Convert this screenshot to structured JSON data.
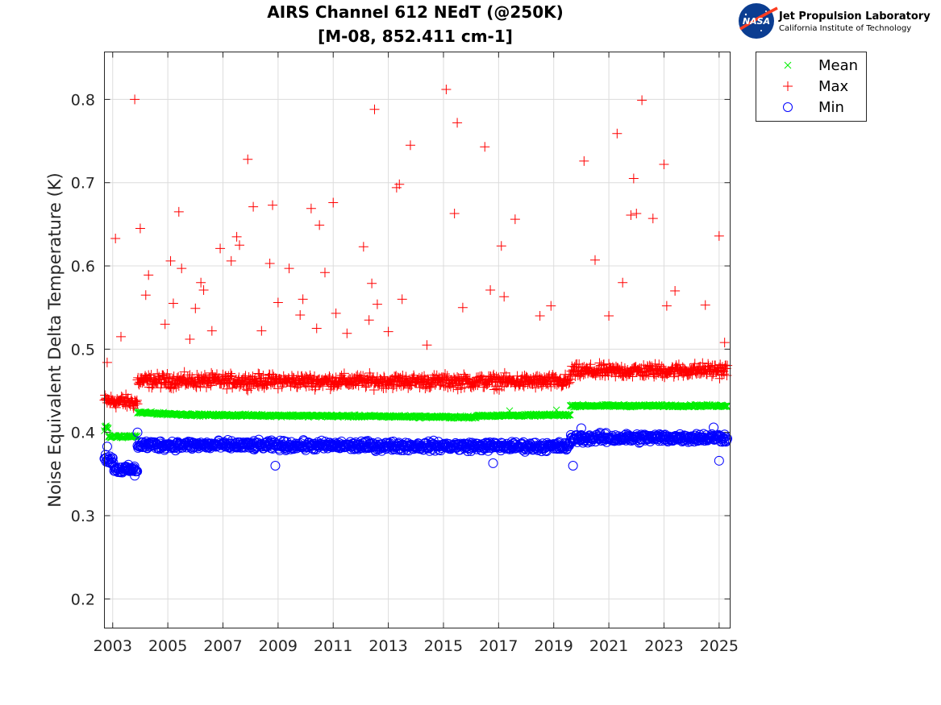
{
  "logo": {
    "org": "Jet Propulsion Laboratory",
    "sub": "California Institute of Technology",
    "badge": "NASA"
  },
  "chart_data": {
    "type": "scatter",
    "title": [
      "AIRS Channel 612 NEdT (@250K)",
      "[M-08, 852.411 cm-1]"
    ],
    "xlabel": "",
    "ylabel": "Noise Equivalent Delta Temperature (K)",
    "xlim": [
      2002.7,
      2025.4
    ],
    "ylim": [
      0.165,
      0.857
    ],
    "xticks": [
      2003,
      2005,
      2007,
      2009,
      2011,
      2013,
      2015,
      2017,
      2019,
      2021,
      2023,
      2025
    ],
    "yticks": [
      0.2,
      0.3,
      0.4,
      0.5,
      0.6,
      0.7,
      0.8
    ],
    "grid": true,
    "legend_position": "outside-top-right",
    "series": [
      {
        "name": "Mean",
        "marker": "x",
        "color": "#00ee00",
        "segments": [
          {
            "x": [
              2002.7,
              2002.85
            ],
            "y": [
              0.405,
              0.405
            ],
            "spread": 0.006
          },
          {
            "x": [
              2002.85,
              2003.9
            ],
            "y": [
              0.395,
              0.395
            ],
            "spread": 0.002
          },
          {
            "x": [
              2003.9,
              2004.5
            ],
            "y": [
              0.424,
              0.423
            ],
            "spread": 0.002
          },
          {
            "x": [
              2004.5,
              2006.0
            ],
            "y": [
              0.423,
              0.421
            ],
            "spread": 0.002
          },
          {
            "x": [
              2006.0,
              2014.0
            ],
            "y": [
              0.421,
              0.419
            ],
            "spread": 0.002
          },
          {
            "x": [
              2014.0,
              2016.2
            ],
            "y": [
              0.419,
              0.418
            ],
            "spread": 0.002
          },
          {
            "x": [
              2016.2,
              2019.6
            ],
            "y": [
              0.42,
              0.421
            ],
            "spread": 0.002
          },
          {
            "x": [
              2019.6,
              2025.3
            ],
            "y": [
              0.432,
              0.432
            ],
            "spread": 0.002
          }
        ],
        "outliers": [
          [
            2017.4,
            0.426
          ],
          [
            2019.1,
            0.427
          ]
        ]
      },
      {
        "name": "Max",
        "marker": "+",
        "color": "#ff0000",
        "segments": [
          {
            "x": [
              2002.7,
              2003.9
            ],
            "y": [
              0.438,
              0.436
            ],
            "spread": 0.012
          },
          {
            "x": [
              2003.9,
              2019.6
            ],
            "y": [
              0.462,
              0.461
            ],
            "spread": 0.012
          },
          {
            "x": [
              2019.6,
              2025.3
            ],
            "y": [
              0.473,
              0.475
            ],
            "spread": 0.012
          }
        ],
        "outliers": [
          [
            2002.8,
            0.484
          ],
          [
            2003.1,
            0.633
          ],
          [
            2003.3,
            0.515
          ],
          [
            2003.8,
            0.8
          ],
          [
            2004.0,
            0.645
          ],
          [
            2004.2,
            0.565
          ],
          [
            2004.3,
            0.589
          ],
          [
            2004.9,
            0.53
          ],
          [
            2005.1,
            0.606
          ],
          [
            2005.2,
            0.555
          ],
          [
            2005.4,
            0.665
          ],
          [
            2005.5,
            0.597
          ],
          [
            2005.8,
            0.512
          ],
          [
            2006.0,
            0.549
          ],
          [
            2006.2,
            0.58
          ],
          [
            2006.3,
            0.571
          ],
          [
            2006.6,
            0.522
          ],
          [
            2006.9,
            0.621
          ],
          [
            2007.3,
            0.606
          ],
          [
            2007.5,
            0.635
          ],
          [
            2007.6,
            0.625
          ],
          [
            2007.9,
            0.728
          ],
          [
            2008.1,
            0.671
          ],
          [
            2008.4,
            0.522
          ],
          [
            2008.7,
            0.603
          ],
          [
            2008.8,
            0.673
          ],
          [
            2009.0,
            0.556
          ],
          [
            2009.4,
            0.597
          ],
          [
            2009.8,
            0.541
          ],
          [
            2009.9,
            0.56
          ],
          [
            2010.2,
            0.669
          ],
          [
            2010.4,
            0.525
          ],
          [
            2010.5,
            0.649
          ],
          [
            2010.7,
            0.592
          ],
          [
            2011.0,
            0.676
          ],
          [
            2011.1,
            0.543
          ],
          [
            2011.5,
            0.519
          ],
          [
            2012.1,
            0.623
          ],
          [
            2012.3,
            0.535
          ],
          [
            2012.4,
            0.579
          ],
          [
            2012.5,
            0.788
          ],
          [
            2012.6,
            0.554
          ],
          [
            2013.0,
            0.521
          ],
          [
            2013.3,
            0.694
          ],
          [
            2013.4,
            0.698
          ],
          [
            2013.5,
            0.56
          ],
          [
            2013.8,
            0.745
          ],
          [
            2014.4,
            0.505
          ],
          [
            2015.1,
            0.812
          ],
          [
            2015.4,
            0.663
          ],
          [
            2015.5,
            0.772
          ],
          [
            2015.7,
            0.55
          ],
          [
            2016.5,
            0.743
          ],
          [
            2016.7,
            0.571
          ],
          [
            2017.1,
            0.624
          ],
          [
            2017.2,
            0.563
          ],
          [
            2017.6,
            0.656
          ],
          [
            2018.5,
            0.54
          ],
          [
            2018.9,
            0.552
          ],
          [
            2020.1,
            0.726
          ],
          [
            2020.5,
            0.607
          ],
          [
            2021.0,
            0.54
          ],
          [
            2021.3,
            0.759
          ],
          [
            2021.5,
            0.58
          ],
          [
            2021.8,
            0.661
          ],
          [
            2021.9,
            0.705
          ],
          [
            2022.0,
            0.663
          ],
          [
            2022.2,
            0.799
          ],
          [
            2022.6,
            0.657
          ],
          [
            2023.0,
            0.722
          ],
          [
            2023.1,
            0.552
          ],
          [
            2023.4,
            0.57
          ],
          [
            2024.5,
            0.553
          ],
          [
            2025.0,
            0.636
          ],
          [
            2025.2,
            0.508
          ]
        ]
      },
      {
        "name": "Min",
        "marker": "o",
        "color": "#0000ff",
        "segments": [
          {
            "x": [
              2002.7,
              2003.05
            ],
            "y": [
              0.37,
              0.365
            ],
            "spread": 0.008
          },
          {
            "x": [
              2003.05,
              2003.9
            ],
            "y": [
              0.356,
              0.355
            ],
            "spread": 0.007
          },
          {
            "x": [
              2003.9,
              2019.6
            ],
            "y": [
              0.385,
              0.383
            ],
            "spread": 0.008
          },
          {
            "x": [
              2019.6,
              2025.3
            ],
            "y": [
              0.393,
              0.394
            ],
            "spread": 0.008
          }
        ],
        "outliers": [
          [
            2002.8,
            0.383
          ],
          [
            2003.8,
            0.348
          ],
          [
            2008.9,
            0.36
          ],
          [
            2016.8,
            0.363
          ],
          [
            2019.7,
            0.36
          ],
          [
            2025.0,
            0.366
          ],
          [
            2003.9,
            0.4
          ],
          [
            2020.0,
            0.405
          ],
          [
            2024.8,
            0.406
          ]
        ]
      }
    ]
  }
}
